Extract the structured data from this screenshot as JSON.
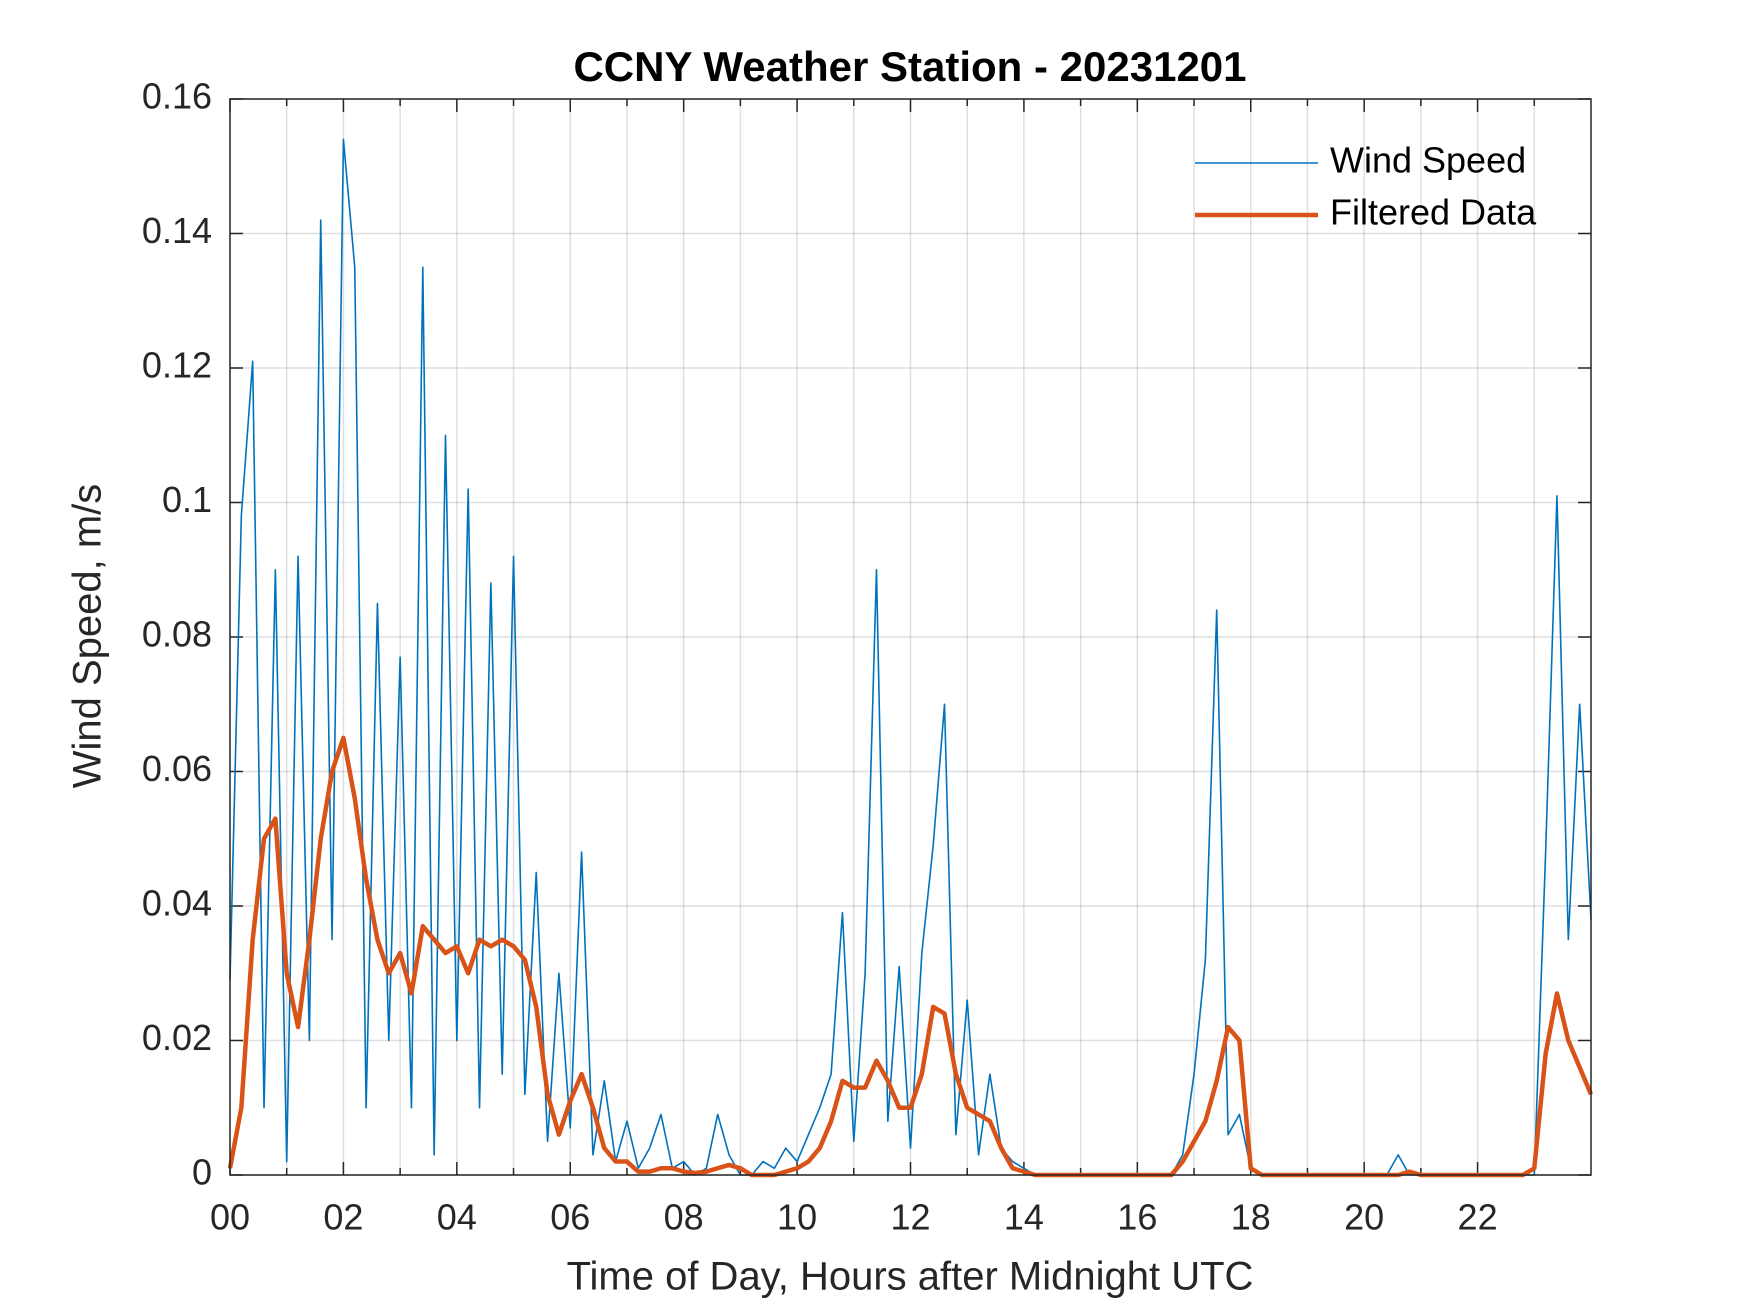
{
  "chart_data": {
    "type": "line",
    "title": "CCNY Weather Station - 20231201",
    "xlabel": "Time of Day, Hours after Midnight UTC",
    "ylabel": "Wind Speed, m/s",
    "xlim": [
      0,
      24
    ],
    "ylim": [
      0,
      0.16
    ],
    "xticks": [
      {
        "value": 0,
        "label": "00"
      },
      {
        "value": 2,
        "label": "02"
      },
      {
        "value": 4,
        "label": "04"
      },
      {
        "value": 6,
        "label": "06"
      },
      {
        "value": 8,
        "label": "08"
      },
      {
        "value": 10,
        "label": "10"
      },
      {
        "value": 12,
        "label": "12"
      },
      {
        "value": 14,
        "label": "14"
      },
      {
        "value": 16,
        "label": "16"
      },
      {
        "value": 18,
        "label": "18"
      },
      {
        "value": 20,
        "label": "20"
      },
      {
        "value": 22,
        "label": "22"
      }
    ],
    "xminorticks": [
      1,
      3,
      5,
      7,
      9,
      11,
      13,
      15,
      17,
      19,
      21,
      23
    ],
    "yticks": [
      0,
      0.02,
      0.04,
      0.06,
      0.08,
      0.1,
      0.12,
      0.14,
      0.16
    ],
    "grid": true,
    "legend": "northeast",
    "x": [
      0,
      0.2,
      0.4,
      0.6,
      0.8,
      1,
      1.2,
      1.4,
      1.6,
      1.8,
      2,
      2.2,
      2.4,
      2.6,
      2.8,
      3,
      3.2,
      3.4,
      3.6,
      3.8,
      4,
      4.2,
      4.4,
      4.6,
      4.8,
      5,
      5.2,
      5.4,
      5.6,
      5.8,
      6,
      6.2,
      6.4,
      6.6,
      6.8,
      7,
      7.2,
      7.4,
      7.6,
      7.8,
      8,
      8.2,
      8.4,
      8.6,
      8.8,
      9,
      9.2,
      9.4,
      9.6,
      9.8,
      10,
      10.2,
      10.4,
      10.6,
      10.8,
      11,
      11.2,
      11.4,
      11.6,
      11.8,
      12,
      12.2,
      12.4,
      12.6,
      12.8,
      13,
      13.2,
      13.4,
      13.6,
      13.8,
      14,
      14.2,
      14.4,
      14.6,
      14.8,
      15,
      15.2,
      15.4,
      15.6,
      15.8,
      16,
      16.2,
      16.4,
      16.6,
      16.8,
      17,
      17.2,
      17.4,
      17.6,
      17.8,
      18,
      18.2,
      18.4,
      18.6,
      18.8,
      19,
      19.2,
      19.4,
      19.6,
      19.8,
      20,
      20.2,
      20.4,
      20.6,
      20.8,
      21,
      21.2,
      21.4,
      21.6,
      21.8,
      22,
      22.2,
      22.4,
      22.6,
      22.8,
      23,
      23.2,
      23.4,
      23.6,
      23.8,
      24
    ],
    "series": [
      {
        "name": "Wind Speed",
        "color": "#0072bd",
        "values": [
          0.029,
          0.098,
          0.121,
          0.01,
          0.09,
          0.002,
          0.092,
          0.02,
          0.142,
          0.035,
          0.154,
          0.135,
          0.01,
          0.085,
          0.02,
          0.077,
          0.01,
          0.135,
          0.003,
          0.11,
          0.02,
          0.102,
          0.01,
          0.088,
          0.015,
          0.092,
          0.012,
          0.045,
          0.005,
          0.03,
          0.007,
          0.048,
          0.003,
          0.014,
          0.002,
          0.008,
          0.001,
          0.004,
          0.009,
          0.001,
          0.002,
          0,
          0.001,
          0.009,
          0.003,
          0,
          0,
          0.002,
          0.001,
          0.004,
          0.002,
          0.006,
          0.01,
          0.015,
          0.039,
          0.005,
          0.03,
          0.09,
          0.008,
          0.031,
          0.004,
          0.033,
          0.049,
          0.07,
          0.006,
          0.026,
          0.003,
          0.015,
          0.004,
          0.002,
          0.001,
          0,
          0,
          0,
          0,
          0,
          0,
          0,
          0,
          0,
          0,
          0,
          0,
          0,
          0.003,
          0.015,
          0.032,
          0.084,
          0.006,
          0.009,
          0.001,
          0,
          0,
          0,
          0,
          0,
          0,
          0,
          0,
          0,
          0,
          0,
          0,
          0.003,
          0,
          0,
          0,
          0,
          0,
          0,
          0,
          0,
          0,
          0,
          0,
          0,
          0.048,
          0.101,
          0.035,
          0.07,
          0.038
        ]
      },
      {
        "name": "Filtered Data",
        "color": "#d95319",
        "values": [
          0.001,
          0.01,
          0.035,
          0.05,
          0.053,
          0.03,
          0.022,
          0.035,
          0.05,
          0.06,
          0.065,
          0.056,
          0.044,
          0.035,
          0.03,
          0.033,
          0.027,
          0.037,
          0.035,
          0.033,
          0.034,
          0.03,
          0.035,
          0.034,
          0.035,
          0.034,
          0.032,
          0.025,
          0.012,
          0.006,
          0.011,
          0.015,
          0.01,
          0.004,
          0.002,
          0.002,
          0.0005,
          0.0005,
          0.001,
          0.001,
          0.0005,
          0.0003,
          0.0005,
          0.001,
          0.0015,
          0.001,
          0,
          0,
          0,
          0.0005,
          0.001,
          0.002,
          0.004,
          0.008,
          0.014,
          0.013,
          0.013,
          0.017,
          0.014,
          0.01,
          0.01,
          0.015,
          0.025,
          0.024,
          0.015,
          0.01,
          0.009,
          0.008,
          0.004,
          0.001,
          0.0005,
          0,
          0,
          0,
          0,
          0,
          0,
          0,
          0,
          0,
          0,
          0,
          0,
          0,
          0.002,
          0.005,
          0.008,
          0.014,
          0.022,
          0.02,
          0.001,
          0,
          0,
          0,
          0,
          0,
          0,
          0,
          0,
          0,
          0,
          0,
          0,
          0,
          0.0005,
          0,
          0,
          0,
          0,
          0,
          0,
          0,
          0,
          0,
          0,
          0.001,
          0.018,
          0.027,
          0.02,
          0.016,
          0.012
        ]
      }
    ]
  }
}
